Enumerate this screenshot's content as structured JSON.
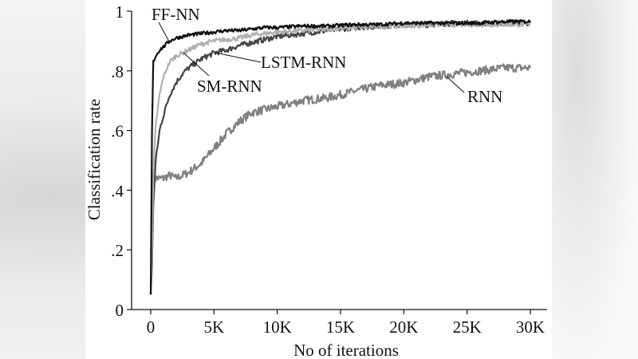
{
  "chart_data": {
    "type": "line",
    "title": "",
    "xlabel": "No of iterations",
    "ylabel": "Classification rate",
    "xlim": [
      0,
      30000
    ],
    "ylim": [
      0,
      1
    ],
    "x_ticks": [
      "0",
      "5K",
      "10K",
      "15K",
      "20K",
      "25K",
      "30K"
    ],
    "x_tick_values": [
      0,
      5000,
      10000,
      15000,
      20000,
      25000,
      30000
    ],
    "y_ticks": [
      "0",
      ".2",
      ".4",
      ".6",
      ".8",
      "1"
    ],
    "y_tick_values": [
      0,
      0.2,
      0.4,
      0.6,
      0.8,
      1.0
    ],
    "grid": false,
    "legend": "inline labels with leader lines",
    "x": [
      0,
      100,
      200,
      400,
      700,
      1000,
      1500,
      2000,
      2500,
      3000,
      4000,
      5000,
      6000,
      7000,
      8000,
      9000,
      10000,
      12000,
      14000,
      16000,
      18000,
      20000,
      22000,
      24000,
      26000,
      28000,
      30000
    ],
    "series": [
      {
        "name": "FF-NN",
        "color": "#111111",
        "values": [
          0.05,
          0.6,
          0.83,
          0.85,
          0.87,
          0.88,
          0.9,
          0.91,
          0.915,
          0.92,
          0.925,
          0.93,
          0.935,
          0.935,
          0.94,
          0.945,
          0.945,
          0.95,
          0.95,
          0.955,
          0.955,
          0.96,
          0.96,
          0.96,
          0.96,
          0.965,
          0.965
        ]
      },
      {
        "name": "SM-RNN",
        "color": "#b0b0b0",
        "values": [
          0.05,
          0.2,
          0.45,
          0.62,
          0.72,
          0.78,
          0.83,
          0.85,
          0.86,
          0.87,
          0.89,
          0.9,
          0.905,
          0.91,
          0.92,
          0.925,
          0.93,
          0.935,
          0.94,
          0.945,
          0.95,
          0.95,
          0.955,
          0.955,
          0.955,
          0.955,
          0.955
        ]
      },
      {
        "name": "LSTM-RNN",
        "color": "#444444",
        "values": [
          0.05,
          0.15,
          0.35,
          0.5,
          0.6,
          0.65,
          0.72,
          0.76,
          0.79,
          0.81,
          0.84,
          0.86,
          0.87,
          0.885,
          0.895,
          0.905,
          0.915,
          0.925,
          0.935,
          0.945,
          0.95,
          0.955,
          0.955,
          0.96,
          0.96,
          0.96,
          0.96
        ]
      },
      {
        "name": "RNN",
        "color": "#808080",
        "values": [
          0.05,
          0.2,
          0.43,
          0.44,
          0.44,
          0.44,
          0.45,
          0.44,
          0.45,
          0.46,
          0.49,
          0.54,
          0.59,
          0.63,
          0.66,
          0.67,
          0.68,
          0.7,
          0.71,
          0.73,
          0.75,
          0.76,
          0.78,
          0.79,
          0.8,
          0.81,
          0.81
        ]
      }
    ],
    "annotations": [
      {
        "text": "FF-NN",
        "target_series": "FF-NN"
      },
      {
        "text": "LSTM-RNN",
        "target_series": "LSTM-RNN"
      },
      {
        "text": "SM-RNN",
        "target_series": "SM-RNN"
      },
      {
        "text": "RNN",
        "target_series": "RNN"
      }
    ]
  }
}
